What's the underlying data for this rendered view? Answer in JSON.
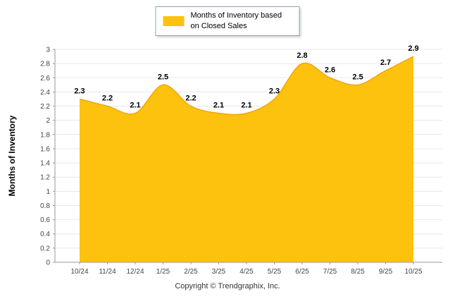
{
  "legend": {
    "label": "Months of Inventory based on Closed Sales",
    "swatch_color": "#FDC20E"
  },
  "footer": {
    "copyright": "Copyright © Trendgraphix, Inc."
  },
  "chart_data": {
    "type": "area",
    "categories": [
      "10/24",
      "11/24",
      "12/24",
      "1/25",
      "2/25",
      "3/25",
      "4/25",
      "5/25",
      "6/25",
      "7/25",
      "8/25",
      "9/25",
      "10/25"
    ],
    "values": [
      2.3,
      2.2,
      2.1,
      2.5,
      2.2,
      2.1,
      2.1,
      2.3,
      2.8,
      2.6,
      2.5,
      2.7,
      2.9
    ],
    "title": "Months of Inventory based on Closed Sales",
    "xlabel": "",
    "ylabel": "Months of Inventory",
    "ylim": [
      0,
      3
    ],
    "ytick_step": 0.2,
    "grid": true,
    "legend_position": "top",
    "series_color": "#FDC20E",
    "edge_color": "#F2A50C",
    "grid_color": "#e7e7e7",
    "axis_color": "#9a9a9a",
    "tick_label_color": "#444444",
    "data_label_color": "#000000"
  }
}
